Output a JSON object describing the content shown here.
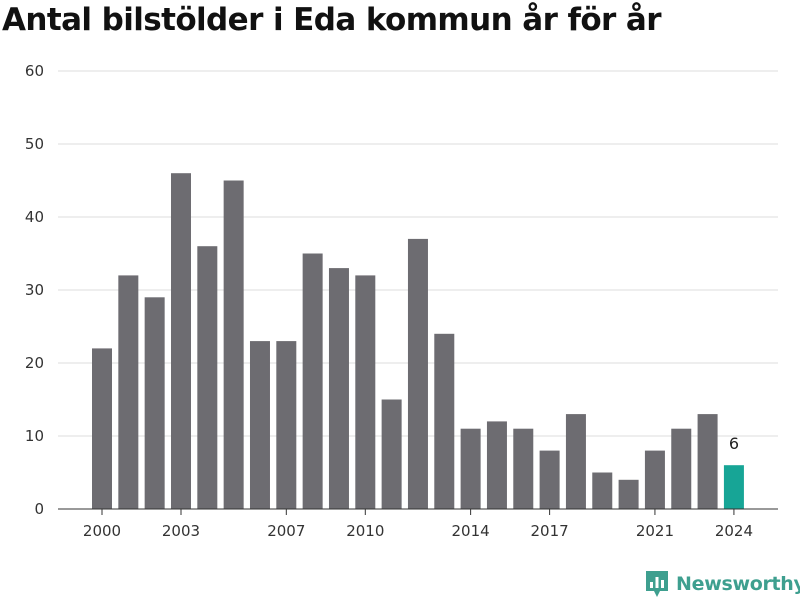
{
  "title": "Antal bilstölder i Eda kommun år för år",
  "brand": {
    "name": "Newsworthy",
    "icon": "newsworthy-logo-icon",
    "color": "#3e9f8f"
  },
  "chart_data": {
    "type": "bar",
    "categories": [
      2000,
      2001,
      2002,
      2003,
      2004,
      2005,
      2006,
      2007,
      2008,
      2009,
      2010,
      2011,
      2012,
      2013,
      2014,
      2015,
      2016,
      2017,
      2018,
      2019,
      2020,
      2021,
      2022,
      2023,
      2024
    ],
    "values": [
      22,
      32,
      29,
      46,
      36,
      45,
      23,
      23,
      35,
      33,
      32,
      15,
      37,
      24,
      11,
      12,
      11,
      8,
      13,
      5,
      4,
      8,
      11,
      13,
      6
    ],
    "x_ticks": [
      2000,
      2003,
      2007,
      2010,
      2014,
      2017,
      2021,
      2024
    ],
    "y_ticks": [
      0,
      10,
      20,
      30,
      40,
      50,
      60
    ],
    "ylim": [
      0,
      60
    ],
    "grid": "horizontal",
    "bar_color": "#6d6c71",
    "highlight": {
      "category": 2024,
      "color": "#17a596",
      "label": "6"
    }
  }
}
